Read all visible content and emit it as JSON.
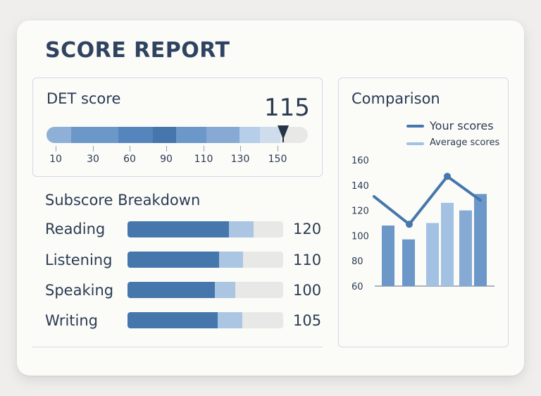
{
  "report": {
    "title": "SCORE REPORT"
  },
  "det": {
    "label": "DET score",
    "score": "115",
    "score_value": 115,
    "scale_ticks": [
      "10",
      "30",
      "60",
      "90",
      "110",
      "130",
      "150"
    ]
  },
  "subscores": {
    "title": "Subscore Breakdown",
    "rows": [
      {
        "label": "Reading",
        "value": "120"
      },
      {
        "label": "Listening",
        "value": "110"
      },
      {
        "label": "Speaking",
        "value": "100"
      },
      {
        "label": "Writing",
        "value": "105"
      }
    ]
  },
  "comparison": {
    "title": "Comparison",
    "legend": [
      {
        "label": "Your scores",
        "color": "#4677ac"
      },
      {
        "label": "Average scores",
        "color": "#a3c1e2"
      }
    ]
  },
  "chart_data": {
    "type": "bar",
    "title": "Comparison",
    "ylim": [
      60,
      160
    ],
    "yticks": [
      "160",
      "140",
      "120",
      "100",
      "80",
      "60"
    ],
    "series": [
      {
        "name": "Your scores",
        "type": "line",
        "values": [
          131,
          109,
          147,
          128
        ]
      },
      {
        "name": "Average scores",
        "type": "bar",
        "values": [
          108,
          97,
          110,
          126,
          120,
          133
        ]
      }
    ],
    "legend": "top-right",
    "grid": false
  }
}
